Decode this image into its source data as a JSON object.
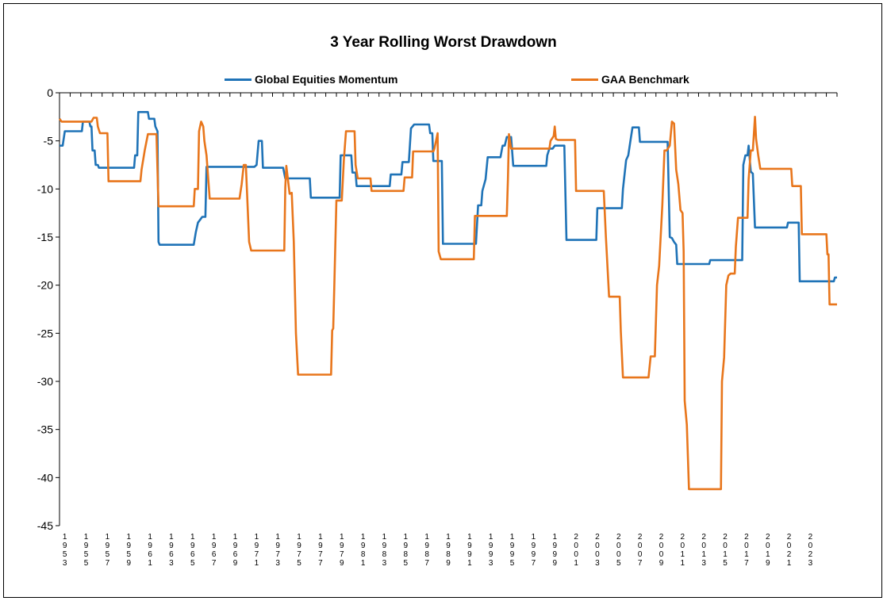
{
  "chart_data": {
    "type": "line",
    "title": "3 Year Rolling Worst Drawdown",
    "xlabel": "",
    "ylabel": "",
    "ylim": [
      -45,
      0
    ],
    "yticks": [
      0,
      -5,
      -10,
      -15,
      -20,
      -25,
      -30,
      -35,
      -40,
      -45
    ],
    "xtick_labels": [
      "1953",
      "1955",
      "1957",
      "1959",
      "1961",
      "1963",
      "1965",
      "1967",
      "1969",
      "1971",
      "1973",
      "1975",
      "1977",
      "1979",
      "1981",
      "1983",
      "1985",
      "1987",
      "1989",
      "1991",
      "1993",
      "1995",
      "1997",
      "1999",
      "2001",
      "2003",
      "2005",
      "2007",
      "2009",
      "2011",
      "2013",
      "2015",
      "2017",
      "2019",
      "2021",
      "2023"
    ],
    "grid": false,
    "legend_position": "top",
    "series": [
      {
        "name": "Global Equities Momentum",
        "color": "#1F73B7",
        "points": [
          [
            1953.0,
            -5.5
          ],
          [
            1953.3,
            -5.5
          ],
          [
            1953.5,
            -4.0
          ],
          [
            1955.1,
            -4.0
          ],
          [
            1955.2,
            -3.0
          ],
          [
            1955.8,
            -3.0
          ],
          [
            1955.9,
            -3.5
          ],
          [
            1956.0,
            -3.5
          ],
          [
            1956.1,
            -6.0
          ],
          [
            1956.3,
            -6.0
          ],
          [
            1956.4,
            -7.5
          ],
          [
            1956.6,
            -7.5
          ],
          [
            1956.7,
            -7.8
          ],
          [
            1960.0,
            -7.8
          ],
          [
            1960.1,
            -6.5
          ],
          [
            1960.3,
            -6.5
          ],
          [
            1960.4,
            -2.0
          ],
          [
            1961.3,
            -2.0
          ],
          [
            1961.4,
            -2.7
          ],
          [
            1961.9,
            -2.7
          ],
          [
            1962.0,
            -3.5
          ],
          [
            1962.2,
            -4.0
          ],
          [
            1962.3,
            -15.5
          ],
          [
            1962.4,
            -15.8
          ],
          [
            1965.6,
            -15.8
          ],
          [
            1965.8,
            -14.5
          ],
          [
            1966.0,
            -13.5
          ],
          [
            1966.2,
            -13.2
          ],
          [
            1966.4,
            -12.9
          ],
          [
            1966.7,
            -12.9
          ],
          [
            1966.8,
            -7.7
          ],
          [
            1971.3,
            -7.7
          ],
          [
            1971.5,
            -7.5
          ],
          [
            1971.7,
            -5.0
          ],
          [
            1972.0,
            -5.0
          ],
          [
            1972.1,
            -7.8
          ],
          [
            1974.0,
            -7.8
          ],
          [
            1974.2,
            -8.9
          ],
          [
            1976.5,
            -8.9
          ],
          [
            1976.6,
            -10.9
          ],
          [
            1979.3,
            -10.9
          ],
          [
            1979.4,
            -6.5
          ],
          [
            1980.4,
            -6.5
          ],
          [
            1980.5,
            -8.3
          ],
          [
            1980.8,
            -8.3
          ],
          [
            1980.9,
            -9.7
          ],
          [
            1984.0,
            -9.7
          ],
          [
            1984.1,
            -8.5
          ],
          [
            1985.1,
            -8.5
          ],
          [
            1985.2,
            -7.2
          ],
          [
            1985.8,
            -7.2
          ],
          [
            1986.0,
            -3.7
          ],
          [
            1986.3,
            -3.3
          ],
          [
            1987.7,
            -3.3
          ],
          [
            1987.8,
            -4.2
          ],
          [
            1988.0,
            -4.2
          ],
          [
            1988.1,
            -7.1
          ],
          [
            1988.9,
            -7.1
          ],
          [
            1989.0,
            -15.7
          ],
          [
            1992.1,
            -15.7
          ],
          [
            1992.3,
            -11.7
          ],
          [
            1992.6,
            -11.7
          ],
          [
            1992.7,
            -10.2
          ],
          [
            1993.0,
            -9.0
          ],
          [
            1993.2,
            -6.7
          ],
          [
            1994.4,
            -6.7
          ],
          [
            1994.6,
            -5.5
          ],
          [
            1994.8,
            -5.5
          ],
          [
            1995.0,
            -4.6
          ],
          [
            1995.4,
            -4.6
          ],
          [
            1995.6,
            -7.6
          ],
          [
            1998.7,
            -7.6
          ],
          [
            1998.8,
            -6.5
          ],
          [
            1999.0,
            -5.8
          ],
          [
            1999.3,
            -5.8
          ],
          [
            1999.5,
            -5.5
          ],
          [
            2000.4,
            -5.5
          ],
          [
            2000.6,
            -15.3
          ],
          [
            2003.4,
            -15.3
          ],
          [
            2003.5,
            -12.0
          ],
          [
            2005.8,
            -12.0
          ],
          [
            2005.9,
            -10.0
          ],
          [
            2006.2,
            -7.0
          ],
          [
            2006.4,
            -6.5
          ],
          [
            2006.6,
            -5.0
          ],
          [
            2006.8,
            -3.6
          ],
          [
            2007.4,
            -3.6
          ],
          [
            2007.5,
            -5.1
          ],
          [
            2010.1,
            -5.1
          ],
          [
            2010.3,
            -15.0
          ],
          [
            2010.5,
            -15.1
          ],
          [
            2010.7,
            -15.5
          ],
          [
            2010.9,
            -15.8
          ],
          [
            2011.0,
            -17.8
          ],
          [
            2014.0,
            -17.8
          ],
          [
            2014.1,
            -17.4
          ],
          [
            2017.1,
            -17.4
          ],
          [
            2017.2,
            -7.5
          ],
          [
            2017.4,
            -6.5
          ],
          [
            2017.6,
            -6.5
          ],
          [
            2017.7,
            -5.5
          ],
          [
            2017.9,
            -8.2
          ],
          [
            2018.1,
            -8.4
          ],
          [
            2018.3,
            -14.0
          ],
          [
            2021.3,
            -14.0
          ],
          [
            2021.4,
            -13.5
          ],
          [
            2022.4,
            -13.5
          ],
          [
            2022.5,
            -19.6
          ],
          [
            2025.7,
            -19.6
          ],
          [
            2025.8,
            -19.2
          ],
          [
            2026.0,
            -19.2
          ]
        ]
      },
      {
        "name": "GAA Benchmark",
        "color": "#E8761C",
        "points": [
          [
            1953.0,
            -2.7
          ],
          [
            1953.2,
            -3.0
          ],
          [
            1955.8,
            -3.0
          ],
          [
            1956.0,
            -3.0
          ],
          [
            1956.2,
            -2.6
          ],
          [
            1956.5,
            -2.6
          ],
          [
            1956.6,
            -3.5
          ],
          [
            1956.8,
            -4.2
          ],
          [
            1957.5,
            -4.2
          ],
          [
            1957.6,
            -9.2
          ],
          [
            1960.6,
            -9.2
          ],
          [
            1960.7,
            -8.0
          ],
          [
            1961.0,
            -6.0
          ],
          [
            1961.3,
            -4.3
          ],
          [
            1962.1,
            -4.3
          ],
          [
            1962.3,
            -11.8
          ],
          [
            1965.6,
            -11.8
          ],
          [
            1965.7,
            -10.0
          ],
          [
            1966.0,
            -10.0
          ],
          [
            1966.1,
            -4.0
          ],
          [
            1966.3,
            -3.0
          ],
          [
            1966.5,
            -3.5
          ],
          [
            1966.6,
            -5.0
          ],
          [
            1966.8,
            -6.5
          ],
          [
            1967.1,
            -11.0
          ],
          [
            1969.9,
            -11.0
          ],
          [
            1970.1,
            -9.5
          ],
          [
            1970.3,
            -7.5
          ],
          [
            1970.5,
            -7.5
          ],
          [
            1970.8,
            -15.5
          ],
          [
            1971.0,
            -16.4
          ],
          [
            1974.1,
            -16.4
          ],
          [
            1974.2,
            -9.8
          ],
          [
            1974.3,
            -7.6
          ],
          [
            1974.5,
            -9.5
          ],
          [
            1974.6,
            -10.5
          ],
          [
            1974.8,
            -10.4
          ],
          [
            1975.0,
            -15.5
          ],
          [
            1975.2,
            -25.0
          ],
          [
            1975.4,
            -29.3
          ],
          [
            1978.5,
            -29.3
          ],
          [
            1978.6,
            -24.7
          ],
          [
            1978.7,
            -24.5
          ],
          [
            1978.8,
            -20.0
          ],
          [
            1979.0,
            -11.2
          ],
          [
            1979.5,
            -11.2
          ],
          [
            1979.7,
            -7.0
          ],
          [
            1979.9,
            -4.0
          ],
          [
            1980.7,
            -4.0
          ],
          [
            1980.8,
            -7.5
          ],
          [
            1981.0,
            -8.9
          ],
          [
            1982.2,
            -8.9
          ],
          [
            1982.3,
            -10.2
          ],
          [
            1985.3,
            -10.2
          ],
          [
            1985.4,
            -8.8
          ],
          [
            1986.1,
            -8.8
          ],
          [
            1986.2,
            -6.1
          ],
          [
            1988.1,
            -6.1
          ],
          [
            1988.2,
            -5.8
          ],
          [
            1988.5,
            -4.2
          ],
          [
            1988.6,
            -16.5
          ],
          [
            1988.8,
            -17.3
          ],
          [
            1991.9,
            -17.3
          ],
          [
            1992.0,
            -12.8
          ],
          [
            1995.0,
            -12.8
          ],
          [
            1995.1,
            -9.0
          ],
          [
            1995.2,
            -4.3
          ],
          [
            1995.4,
            -5.8
          ],
          [
            1999.0,
            -5.8
          ],
          [
            1999.1,
            -5.0
          ],
          [
            1999.4,
            -4.5
          ],
          [
            1999.5,
            -3.5
          ],
          [
            1999.6,
            -4.8
          ],
          [
            1999.8,
            -4.9
          ],
          [
            2001.4,
            -4.9
          ],
          [
            2001.5,
            -10.2
          ],
          [
            2004.1,
            -10.2
          ],
          [
            2004.3,
            -15.0
          ],
          [
            2004.6,
            -21.2
          ],
          [
            2005.6,
            -21.2
          ],
          [
            2005.7,
            -24.8
          ],
          [
            2005.9,
            -29.6
          ],
          [
            2008.3,
            -29.6
          ],
          [
            2008.5,
            -27.4
          ],
          [
            2008.9,
            -27.4
          ],
          [
            2009.1,
            -20.0
          ],
          [
            2009.3,
            -18.0
          ],
          [
            2009.6,
            -11.7
          ],
          [
            2009.8,
            -6.0
          ],
          [
            2010.0,
            -6.0
          ],
          [
            2010.3,
            -5.5
          ],
          [
            2010.5,
            -3.0
          ],
          [
            2010.7,
            -3.2
          ],
          [
            2010.9,
            -8.0
          ],
          [
            2011.1,
            -9.5
          ],
          [
            2011.3,
            -12.2
          ],
          [
            2011.5,
            -12.5
          ],
          [
            2011.6,
            -16.5
          ],
          [
            2011.7,
            -32.0
          ],
          [
            2011.9,
            -34.5
          ],
          [
            2012.1,
            -41.2
          ],
          [
            2015.1,
            -41.2
          ],
          [
            2015.2,
            -30.0
          ],
          [
            2015.4,
            -27.5
          ],
          [
            2015.6,
            -20.0
          ],
          [
            2015.8,
            -19.0
          ],
          [
            2016.0,
            -18.8
          ],
          [
            2016.4,
            -18.8
          ],
          [
            2016.5,
            -16.0
          ],
          [
            2016.7,
            -13.0
          ],
          [
            2017.6,
            -13.0
          ],
          [
            2017.7,
            -9.0
          ],
          [
            2017.9,
            -6.0
          ],
          [
            2018.1,
            -6.0
          ],
          [
            2018.3,
            -2.5
          ],
          [
            2018.4,
            -4.8
          ],
          [
            2018.6,
            -6.5
          ],
          [
            2018.8,
            -7.9
          ],
          [
            2021.7,
            -7.9
          ],
          [
            2021.8,
            -9.7
          ],
          [
            2022.6,
            -9.7
          ],
          [
            2022.7,
            -14.7
          ],
          [
            2025.0,
            -14.7
          ],
          [
            2025.1,
            -16.8
          ],
          [
            2025.2,
            -16.8
          ],
          [
            2025.3,
            -22.0
          ],
          [
            2026.0,
            -22.0
          ]
        ]
      }
    ]
  }
}
